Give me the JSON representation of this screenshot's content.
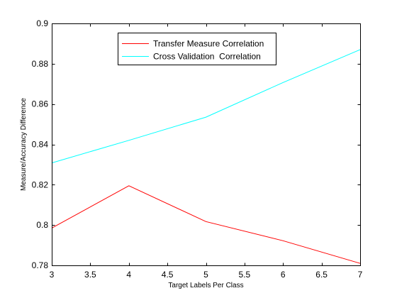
{
  "chart_data": {
    "type": "line",
    "title": "",
    "xlabel": "Target Labels Per Class",
    "ylabel": "Measure/Accuracy Difference",
    "xlim": [
      3,
      7
    ],
    "ylim": [
      0.78,
      0.9
    ],
    "xticks": [
      3,
      3.5,
      4,
      4.5,
      5,
      5.5,
      6,
      6.5,
      7
    ],
    "xtick_labels": [
      "3",
      "3.5",
      "4",
      "4.5",
      "5",
      "5.5",
      "6",
      "6.5",
      "7"
    ],
    "yticks": [
      0.78,
      0.8,
      0.82,
      0.84,
      0.86,
      0.88,
      0.9
    ],
    "ytick_labels": [
      "0.78",
      "0.8",
      "0.82",
      "0.84",
      "0.86",
      "0.88",
      "0.9"
    ],
    "grid": false,
    "legend_position": "top-center",
    "series": [
      {
        "name": "Transfer Measure Correlation",
        "color": "#ff0000",
        "x": [
          3,
          4,
          5,
          6,
          7
        ],
        "y": [
          0.7985,
          0.8195,
          0.8017,
          0.7922,
          0.781
        ]
      },
      {
        "name": "Cross Validation  Correlation",
        "color": "#00ffff",
        "x": [
          3,
          4,
          5,
          6,
          7
        ],
        "y": [
          0.8308,
          0.842,
          0.8535,
          0.8707,
          0.887
        ]
      }
    ]
  }
}
